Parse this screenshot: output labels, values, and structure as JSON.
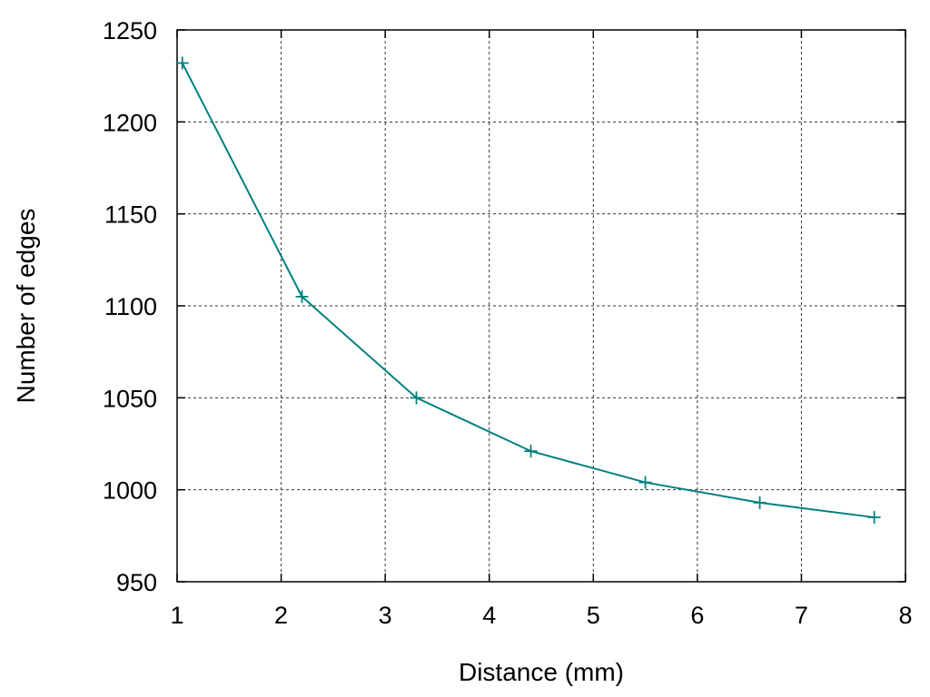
{
  "chart_data": {
    "type": "line",
    "title": "",
    "xlabel": "Distance (mm)",
    "ylabel": "Number of edges",
    "xlim": [
      1,
      8
    ],
    "ylim": [
      950,
      1250
    ],
    "xticks": [
      1,
      2,
      3,
      4,
      5,
      6,
      7,
      8
    ],
    "yticks": [
      950,
      1000,
      1050,
      1100,
      1150,
      1200,
      1250
    ],
    "grid": true,
    "legend": "none",
    "marker": "plus",
    "line_color": "#008080",
    "series": [
      {
        "x": [
          1.05,
          2.2,
          3.3,
          4.4,
          5.5,
          6.6,
          7.7
        ],
        "y": [
          1232,
          1105,
          1050,
          1021,
          1004,
          993,
          985
        ]
      }
    ]
  }
}
